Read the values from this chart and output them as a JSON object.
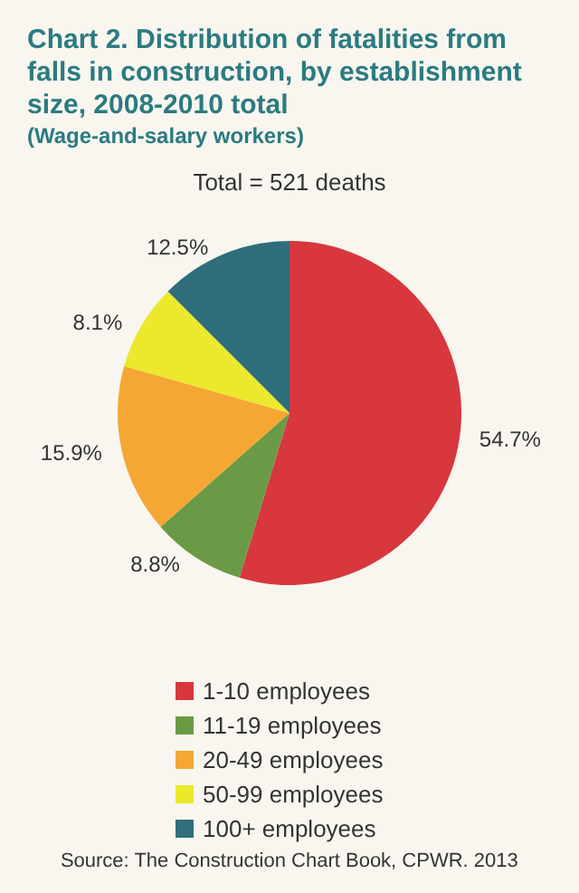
{
  "chart_data": {
    "type": "pie",
    "title": "Chart 2. Distribution of fatalities from falls in construction, by establishment size, 2008-2010 total",
    "subtitle": "(Wage-and-salary workers)",
    "annotations": [
      "Total = 521 deaths",
      "Source: The Construction Chart Book, CPWR. 2013"
    ],
    "categories": [
      "1-10 employees",
      "11-19 employees",
      "20-49 employees",
      "50-99 employees",
      "100+ employees"
    ],
    "values": [
      54.7,
      8.8,
      15.9,
      8.1,
      12.5
    ],
    "colors": [
      "#d7373d",
      "#6b9a46",
      "#f5a733",
      "#ece82c",
      "#2f6e7a"
    ],
    "value_labels": [
      "54.7%",
      "8.8%",
      "15.9%",
      "8.1%",
      "12.5%"
    ],
    "legend": "bottom"
  }
}
